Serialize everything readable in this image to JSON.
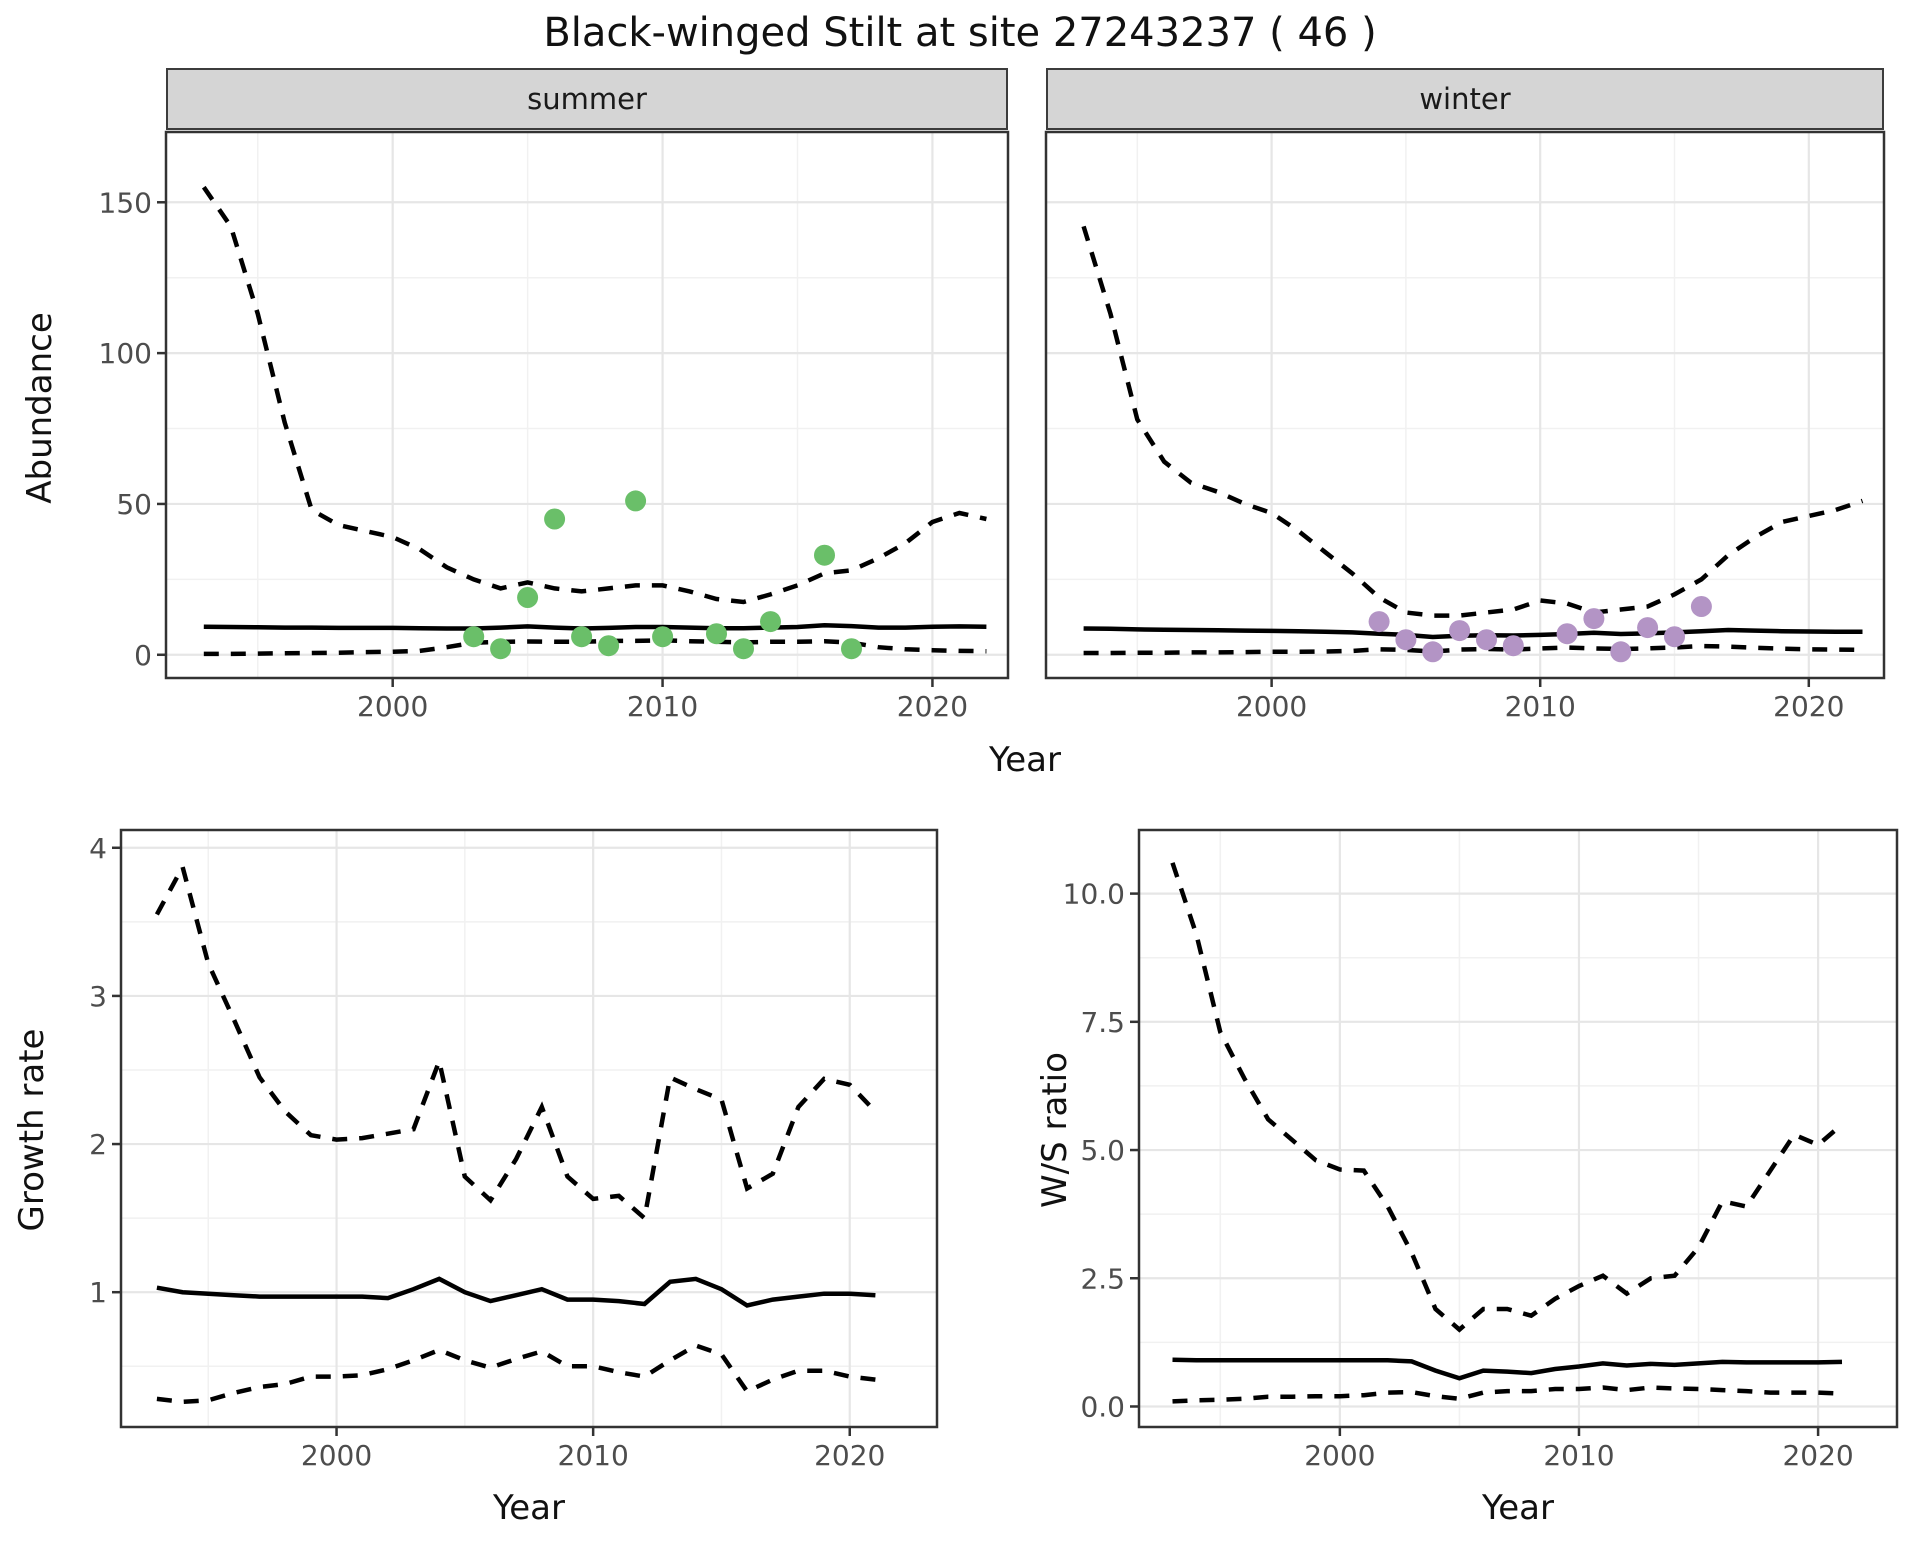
{
  "page": {
    "title": "Black-winged Stilt at site 27243237 ( 46 )"
  },
  "labels": {
    "facet_summer": "summer",
    "facet_winter": "winter",
    "top_ylabel": "Abundance",
    "top_xlabel": "Year",
    "bottom_left_ylabel": "Growth rate",
    "bottom_left_xlabel": "Year",
    "bottom_right_ylabel": "W/S ratio",
    "bottom_right_xlabel": "Year"
  },
  "colors": {
    "line": "#000000",
    "grid_major": "#e6e6e6",
    "grid_minor": "#f1f1f1",
    "panel_border": "#333333",
    "tick": "#333333",
    "strip_bg": "#d5d5d5",
    "axis_text": "#4d4d4d",
    "summer_points": "#6abf69",
    "winter_points": "#b394c5"
  },
  "chart_data": [
    {
      "id": "abundance-summer",
      "type": "line",
      "facet": "summer",
      "ylabel": "Abundance",
      "xlabel": "Year",
      "xlim": [
        1991.6,
        2022.8
      ],
      "ylim": [
        -7.7,
        173.3
      ],
      "xticks": [
        2000,
        2010,
        2020
      ],
      "xtick_labels": [
        "2000",
        "2010",
        "2020"
      ],
      "xticks_minor": [
        1995,
        2005,
        2015
      ],
      "yticks": [
        0,
        50,
        100,
        150
      ],
      "ytick_labels": [
        "0",
        "50",
        "100",
        "150"
      ],
      "yticks_minor": [
        25,
        75,
        125
      ],
      "show_yticks": true,
      "series": [
        {
          "name": "upper_ci",
          "style": "dashed",
          "x": [
            1993,
            1994,
            1995,
            1996,
            1997,
            1998,
            1999,
            2000,
            2001,
            2002,
            2003,
            2004,
            2005,
            2006,
            2007,
            2008,
            2009,
            2010,
            2011,
            2012,
            2013,
            2014,
            2015,
            2016,
            2017,
            2018,
            2019,
            2020,
            2021,
            2022
          ],
          "y": [
            155,
            142,
            113,
            77,
            48,
            43,
            41,
            39,
            35,
            29,
            25,
            22,
            24,
            22,
            21,
            22,
            23,
            23,
            21,
            18.5,
            17.5,
            20,
            23,
            27,
            28,
            32,
            37,
            44,
            47,
            45
          ]
        },
        {
          "name": "median",
          "style": "solid",
          "x": [
            1993,
            1994,
            1995,
            1996,
            1997,
            1998,
            1999,
            2000,
            2001,
            2002,
            2003,
            2004,
            2005,
            2006,
            2007,
            2008,
            2009,
            2010,
            2011,
            2012,
            2013,
            2014,
            2015,
            2016,
            2017,
            2018,
            2019,
            2020,
            2021,
            2022
          ],
          "y": [
            9.3,
            9.2,
            9.1,
            9.0,
            9.0,
            8.9,
            8.9,
            8.9,
            8.8,
            8.7,
            8.7,
            9.0,
            9.4,
            9.0,
            8.7,
            8.9,
            9.2,
            9.2,
            9.0,
            8.8,
            8.8,
            9.0,
            9.2,
            9.8,
            9.5,
            9.0,
            9.0,
            9.3,
            9.4,
            9.3
          ]
        },
        {
          "name": "lower_ci",
          "style": "dashed",
          "x": [
            1993,
            1994,
            1995,
            1996,
            1997,
            1998,
            1999,
            2000,
            2001,
            2002,
            2003,
            2004,
            2005,
            2006,
            2007,
            2008,
            2009,
            2010,
            2011,
            2012,
            2013,
            2014,
            2015,
            2016,
            2017,
            2018,
            2019,
            2020,
            2021,
            2022
          ],
          "y": [
            0.3,
            0.3,
            0.4,
            0.5,
            0.6,
            0.7,
            0.9,
            1.0,
            1.3,
            2.5,
            4.0,
            4.3,
            4.4,
            4.3,
            4.3,
            4.6,
            4.6,
            4.8,
            4.5,
            4.3,
            4.1,
            4.3,
            4.3,
            4.5,
            4.0,
            2.5,
            1.8,
            1.5,
            1.3,
            1.2
          ]
        }
      ],
      "points": {
        "name": "observed_counts",
        "color": "#6abf69",
        "x": [
          2003,
          2004,
          2005,
          2006,
          2007,
          2008,
          2009,
          2010,
          2012,
          2013,
          2014,
          2016,
          2017
        ],
        "y": [
          6,
          2,
          19,
          45,
          6,
          3,
          51,
          6,
          7,
          2,
          11,
          33,
          2
        ]
      }
    },
    {
      "id": "abundance-winter",
      "type": "line",
      "facet": "winter",
      "ylabel": "Abundance",
      "xlabel": "Year",
      "xlim": [
        1991.6,
        2022.8
      ],
      "ylim": [
        -7.7,
        173.3
      ],
      "xticks": [
        2000,
        2010,
        2020
      ],
      "xtick_labels": [
        "2000",
        "2010",
        "2020"
      ],
      "xticks_minor": [
        1995,
        2005,
        2015
      ],
      "yticks": [
        0,
        50,
        100,
        150
      ],
      "ytick_labels": [
        "0",
        "50",
        "100",
        "150"
      ],
      "yticks_minor": [
        25,
        75,
        125
      ],
      "show_yticks": false,
      "series": [
        {
          "name": "upper_ci",
          "style": "dashed",
          "x": [
            1993,
            1994,
            1995,
            1996,
            1997,
            1998,
            1999,
            2000,
            2001,
            2002,
            2003,
            2004,
            2005,
            2006,
            2007,
            2008,
            2009,
            2010,
            2011,
            2012,
            2013,
            2014,
            2015,
            2016,
            2017,
            2018,
            2019,
            2020,
            2021,
            2022
          ],
          "y": [
            142,
            113,
            78,
            64,
            57,
            54,
            50,
            47,
            41,
            34,
            27,
            19,
            14,
            13,
            13,
            14,
            15,
            18,
            17,
            14,
            15,
            16,
            20,
            25,
            33,
            39,
            44,
            46,
            48,
            51
          ]
        },
        {
          "name": "median",
          "style": "solid",
          "x": [
            1993,
            1994,
            1995,
            1996,
            1997,
            1998,
            1999,
            2000,
            2001,
            2002,
            2003,
            2004,
            2005,
            2006,
            2007,
            2008,
            2009,
            2010,
            2011,
            2012,
            2013,
            2014,
            2015,
            2016,
            2017,
            2018,
            2019,
            2020,
            2021,
            2022
          ],
          "y": [
            8.7,
            8.6,
            8.4,
            8.3,
            8.2,
            8.1,
            8.0,
            7.9,
            7.8,
            7.6,
            7.4,
            7.0,
            6.6,
            5.9,
            6.3,
            6.5,
            6.4,
            6.6,
            6.9,
            7.3,
            6.9,
            7.1,
            7.4,
            7.8,
            8.2,
            8.0,
            7.8,
            7.7,
            7.6,
            7.6
          ]
        },
        {
          "name": "lower_ci",
          "style": "dashed",
          "x": [
            1993,
            1994,
            1995,
            1996,
            1997,
            1998,
            1999,
            2000,
            2001,
            2002,
            2003,
            2004,
            2005,
            2006,
            2007,
            2008,
            2009,
            2010,
            2011,
            2012,
            2013,
            2014,
            2015,
            2016,
            2017,
            2018,
            2019,
            2020,
            2021,
            2022
          ],
          "y": [
            0.6,
            0.6,
            0.7,
            0.7,
            0.8,
            0.8,
            0.9,
            1.0,
            1.0,
            1.1,
            1.3,
            1.8,
            1.6,
            1.1,
            1.7,
            1.9,
            1.7,
            2.1,
            2.4,
            2.1,
            1.9,
            2.1,
            2.4,
            2.9,
            2.7,
            2.3,
            2.0,
            1.8,
            1.7,
            1.6
          ]
        }
      ],
      "points": {
        "name": "observed_counts",
        "color": "#b394c5",
        "x": [
          2004,
          2005,
          2006,
          2007,
          2008,
          2009,
          2011,
          2012,
          2013,
          2014,
          2015,
          2016
        ],
        "y": [
          11,
          5,
          1,
          8,
          5,
          3,
          7,
          12,
          1,
          9,
          6,
          16
        ]
      }
    },
    {
      "id": "growth-rate",
      "type": "line",
      "ylabel": "Growth rate",
      "xlabel": "Year",
      "xlim": [
        1991.6,
        2023.4
      ],
      "ylim": [
        0.09,
        4.12
      ],
      "xticks": [
        2000,
        2010,
        2020
      ],
      "xtick_labels": [
        "2000",
        "2010",
        "2020"
      ],
      "xticks_minor": [
        1995,
        2005,
        2015
      ],
      "yticks": [
        1,
        2,
        3,
        4
      ],
      "ytick_labels": [
        "1",
        "2",
        "3",
        "4"
      ],
      "yticks_minor": [
        0.5,
        1.5,
        2.5,
        3.5
      ],
      "show_yticks": true,
      "series": [
        {
          "name": "upper_ci",
          "style": "dashed",
          "x": [
            1993,
            1994,
            1995,
            1996,
            1997,
            1998,
            1999,
            2000,
            2001,
            2002,
            2003,
            2004,
            2005,
            2006,
            2007,
            2008,
            2009,
            2010,
            2011,
            2012,
            2013,
            2014,
            2015,
            2016,
            2017,
            2018,
            2019,
            2020,
            2021
          ],
          "y": [
            3.55,
            3.87,
            3.22,
            2.84,
            2.45,
            2.22,
            2.06,
            2.03,
            2.04,
            2.07,
            2.1,
            2.56,
            1.78,
            1.62,
            1.9,
            2.25,
            1.78,
            1.63,
            1.65,
            1.5,
            2.45,
            2.37,
            2.3,
            1.7,
            1.8,
            2.25,
            2.44,
            2.4,
            2.22
          ]
        },
        {
          "name": "median",
          "style": "solid",
          "x": [
            1993,
            1994,
            1995,
            1996,
            1997,
            1998,
            1999,
            2000,
            2001,
            2002,
            2003,
            2004,
            2005,
            2006,
            2007,
            2008,
            2009,
            2010,
            2011,
            2012,
            2013,
            2014,
            2015,
            2016,
            2017,
            2018,
            2019,
            2020,
            2021
          ],
          "y": [
            1.03,
            1.0,
            0.99,
            0.98,
            0.97,
            0.97,
            0.97,
            0.97,
            0.97,
            0.96,
            1.02,
            1.09,
            1.0,
            0.94,
            0.98,
            1.02,
            0.95,
            0.95,
            0.94,
            0.92,
            1.07,
            1.09,
            1.02,
            0.91,
            0.95,
            0.97,
            0.99,
            0.99,
            0.98
          ]
        },
        {
          "name": "lower_ci",
          "style": "dashed",
          "x": [
            1993,
            1994,
            1995,
            1996,
            1997,
            1998,
            1999,
            2000,
            2001,
            2002,
            2003,
            2004,
            2005,
            2006,
            2007,
            2008,
            2009,
            2010,
            2011,
            2012,
            2013,
            2014,
            2015,
            2016,
            2017,
            2018,
            2019,
            2020,
            2021
          ],
          "y": [
            0.28,
            0.26,
            0.27,
            0.32,
            0.36,
            0.38,
            0.43,
            0.43,
            0.44,
            0.48,
            0.54,
            0.61,
            0.54,
            0.49,
            0.55,
            0.6,
            0.5,
            0.5,
            0.46,
            0.43,
            0.54,
            0.64,
            0.58,
            0.33,
            0.41,
            0.47,
            0.47,
            0.43,
            0.41
          ]
        }
      ]
    },
    {
      "id": "ws-ratio",
      "type": "line",
      "ylabel": "W/S ratio",
      "xlabel": "Year",
      "xlim": [
        1991.6,
        2023.3
      ],
      "ylim": [
        -0.4,
        11.24
      ],
      "xticks": [
        2000,
        2010,
        2020
      ],
      "xtick_labels": [
        "2000",
        "2010",
        "2020"
      ],
      "xticks_minor": [
        1995,
        2005,
        2015
      ],
      "yticks": [
        0,
        2.5,
        5,
        7.5,
        10
      ],
      "ytick_labels": [
        "0.0",
        "2.5",
        "5.0",
        "7.5",
        "10.0"
      ],
      "yticks_minor": [
        1.25,
        3.75,
        6.25,
        8.75
      ],
      "show_yticks": true,
      "series": [
        {
          "name": "upper_ci",
          "style": "dashed",
          "x": [
            1993,
            1994,
            1995,
            1996,
            1997,
            1998,
            1999,
            2000,
            2001,
            2002,
            2003,
            2004,
            2005,
            2006,
            2007,
            2008,
            2009,
            2010,
            2011,
            2012,
            2013,
            2014,
            2015,
            2016,
            2017,
            2018,
            2019,
            2020,
            2021
          ],
          "y": [
            10.6,
            9.2,
            7.3,
            6.4,
            5.6,
            5.2,
            4.8,
            4.62,
            4.6,
            3.9,
            3.0,
            1.9,
            1.5,
            1.9,
            1.9,
            1.77,
            2.1,
            2.35,
            2.55,
            2.2,
            2.5,
            2.55,
            3.1,
            4.0,
            3.9,
            4.6,
            5.3,
            5.1,
            5.5
          ]
        },
        {
          "name": "median",
          "style": "solid",
          "x": [
            1993,
            1994,
            1995,
            1996,
            1997,
            1998,
            1999,
            2000,
            2001,
            2002,
            2003,
            2004,
            2005,
            2006,
            2007,
            2008,
            2009,
            2010,
            2011,
            2012,
            2013,
            2014,
            2015,
            2016,
            2017,
            2018,
            2019,
            2020,
            2021
          ],
          "y": [
            0.91,
            0.9,
            0.9,
            0.9,
            0.9,
            0.9,
            0.9,
            0.9,
            0.9,
            0.9,
            0.88,
            0.7,
            0.55,
            0.7,
            0.68,
            0.65,
            0.73,
            0.78,
            0.84,
            0.8,
            0.83,
            0.81,
            0.84,
            0.87,
            0.86,
            0.86,
            0.86,
            0.86,
            0.87
          ]
        },
        {
          "name": "lower_ci",
          "style": "dashed",
          "x": [
            1993,
            1994,
            1995,
            1996,
            1997,
            1998,
            1999,
            2000,
            2001,
            2002,
            2003,
            2004,
            2005,
            2006,
            2007,
            2008,
            2009,
            2010,
            2011,
            2012,
            2013,
            2014,
            2015,
            2016,
            2017,
            2018,
            2019,
            2020,
            2021
          ],
          "y": [
            0.1,
            0.12,
            0.13,
            0.15,
            0.19,
            0.19,
            0.2,
            0.2,
            0.22,
            0.27,
            0.28,
            0.2,
            0.15,
            0.27,
            0.3,
            0.3,
            0.34,
            0.34,
            0.37,
            0.32,
            0.37,
            0.35,
            0.34,
            0.32,
            0.3,
            0.27,
            0.27,
            0.27,
            0.25
          ]
        }
      ]
    }
  ]
}
